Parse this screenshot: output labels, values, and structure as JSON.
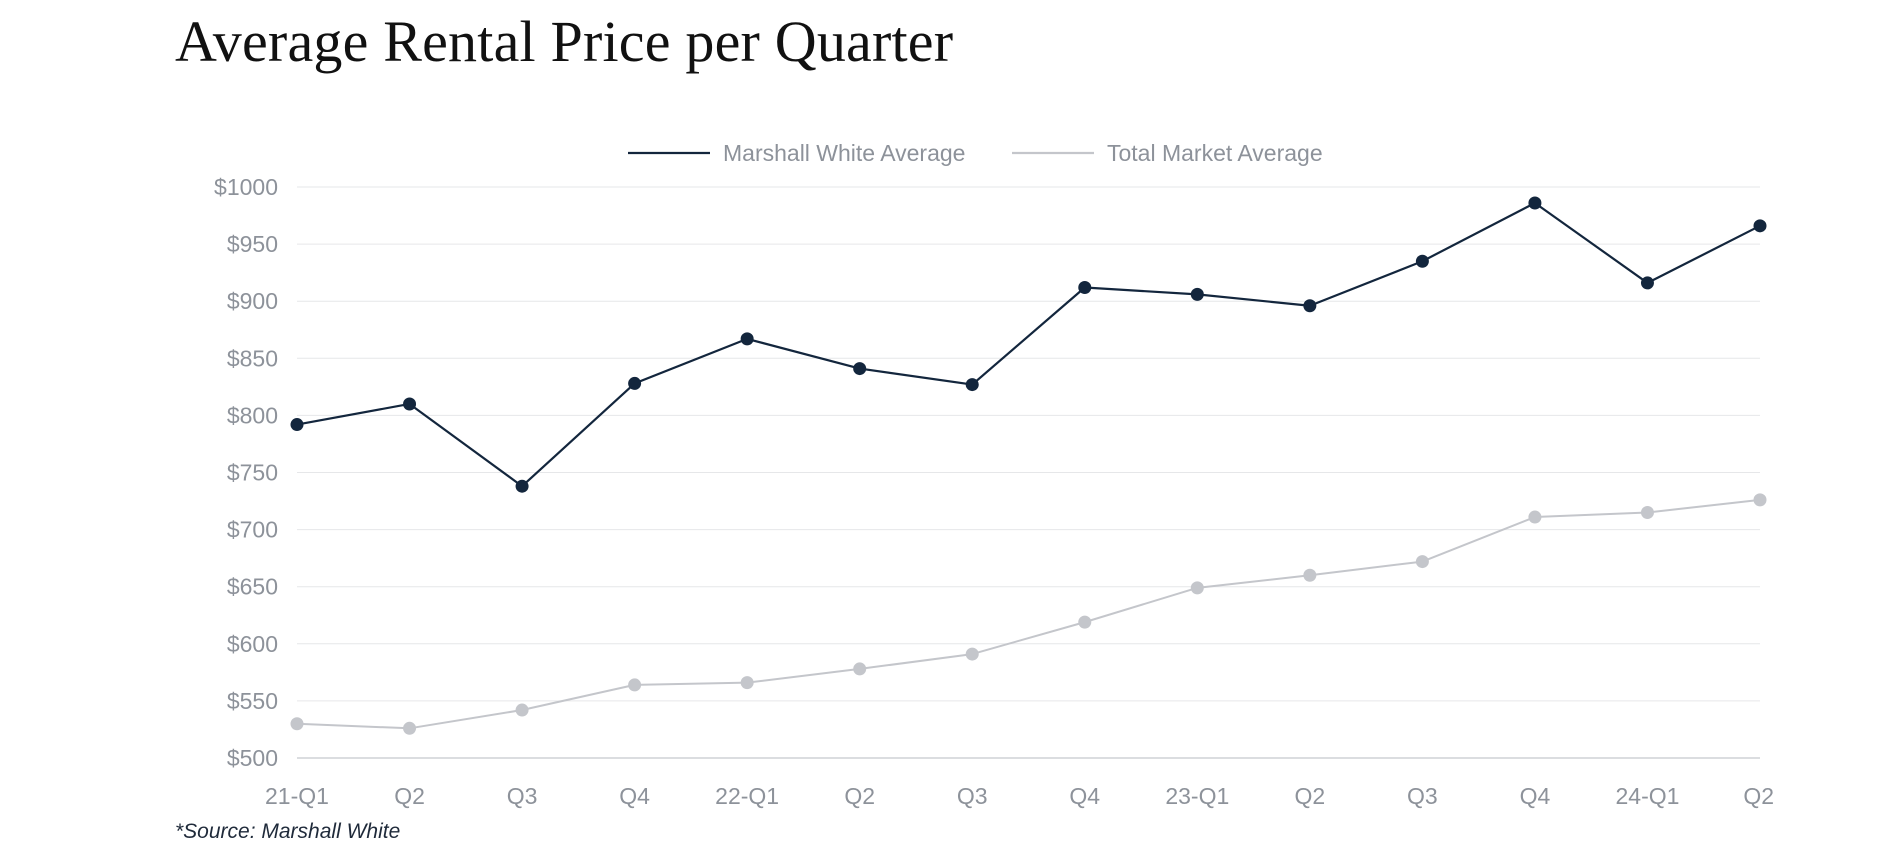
{
  "title": "Average Rental Price per Quarter",
  "source": "*Source: Marshall White",
  "chart_data": {
    "type": "line",
    "title": "Average Rental Price per Quarter",
    "xlabel": "",
    "ylabel": "",
    "categories": [
      "21-Q1",
      "Q2",
      "Q3",
      "Q4",
      "22-Q1",
      "Q2",
      "Q3",
      "Q4",
      "23-Q1",
      "Q2",
      "Q3",
      "Q4",
      "24-Q1",
      "Q2"
    ],
    "ylim": [
      500,
      1000
    ],
    "yticks": [
      500,
      550,
      600,
      650,
      700,
      750,
      800,
      850,
      900,
      950,
      1000
    ],
    "ytick_labels": [
      "$500",
      "$550",
      "$600",
      "$650",
      "$700",
      "$750",
      "$800",
      "$850",
      "$900",
      "$950",
      "$1000"
    ],
    "grid": true,
    "legend_position": "top-center",
    "series": [
      {
        "name": "Marshall White Average",
        "color": "#13263d",
        "values": [
          792,
          810,
          738,
          828,
          867,
          841,
          827,
          912,
          906,
          896,
          935,
          986,
          916,
          966
        ]
      },
      {
        "name": "Total Market Average",
        "color": "#c4c6cb",
        "values": [
          530,
          526,
          542,
          564,
          566,
          578,
          591,
          619,
          649,
          660,
          672,
          711,
          715,
          726
        ]
      }
    ]
  }
}
